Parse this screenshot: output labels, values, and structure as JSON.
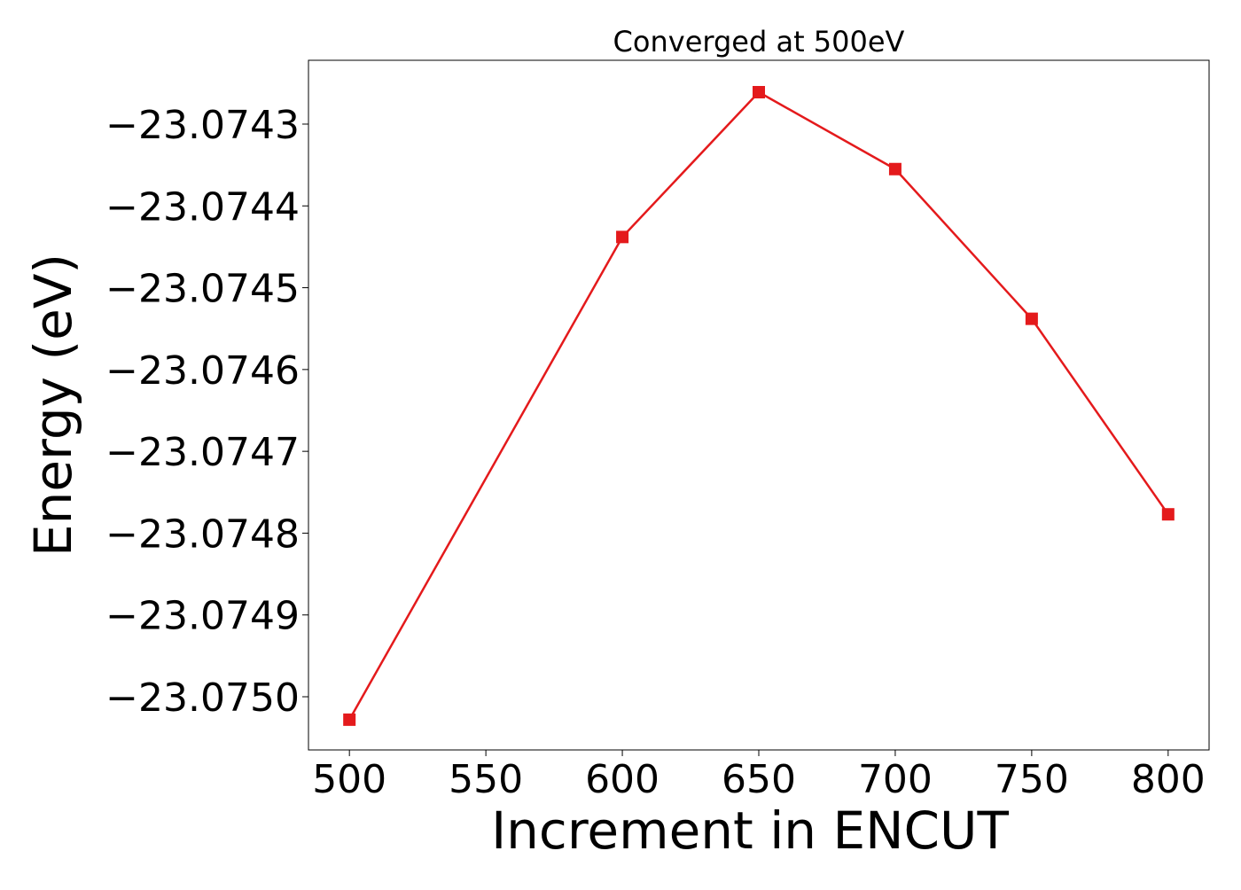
{
  "chart_data": {
    "type": "line",
    "title": "Converged at 500eV",
    "xlabel": "Increment in ENCUT",
    "ylabel": "Energy (eV)",
    "x": [
      500,
      600,
      650,
      700,
      750,
      800
    ],
    "series": [
      {
        "color": "#e41a1c",
        "marker": "square",
        "values": [
          -23.075028,
          -23.074438,
          -23.074261,
          -23.074355,
          -23.074538,
          -23.074777
        ]
      }
    ],
    "xlim": [
      485,
      815
    ],
    "ylim": [
      -23.075065,
      -23.074222
    ],
    "x_ticks": [
      500,
      550,
      600,
      650,
      700,
      750,
      800
    ],
    "x_tick_labels": [
      "500",
      "550",
      "600",
      "650",
      "700",
      "750",
      "800"
    ],
    "y_ticks": [
      -23.0743,
      -23.0744,
      -23.0745,
      -23.0746,
      -23.0747,
      -23.0748,
      -23.0749,
      -23.075
    ],
    "y_tick_labels": [
      "−23.0743",
      "−23.0744",
      "−23.0745",
      "−23.0746",
      "−23.0747",
      "−23.0748",
      "−23.0749",
      "−23.0750"
    ],
    "grid": false,
    "legend": "none"
  }
}
